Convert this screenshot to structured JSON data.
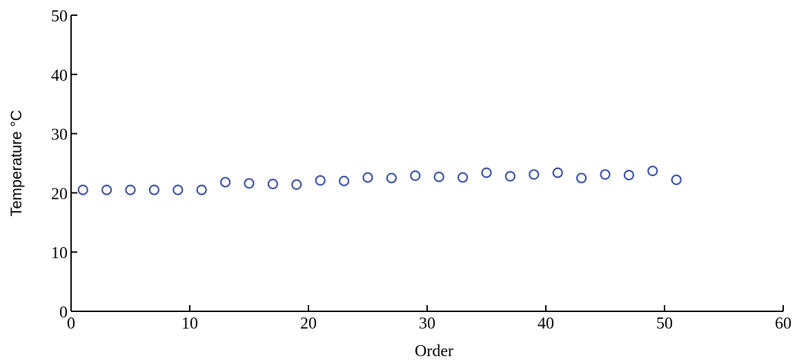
{
  "chart_data": {
    "type": "scatter",
    "title": "",
    "xlabel": "Order",
    "ylabel": "Temperature °C",
    "xlim": [
      0,
      60
    ],
    "ylim": [
      0,
      50
    ],
    "x_ticks": [
      0,
      10,
      20,
      30,
      40,
      50,
      60
    ],
    "y_ticks": [
      0,
      10,
      20,
      30,
      40,
      50
    ],
    "grid": false,
    "marker": "open-circle",
    "colors": {
      "marker": "#3a4fa8",
      "axis": "#000000"
    },
    "series": [
      {
        "x": [
          1,
          3,
          5,
          7,
          9,
          11,
          13,
          15,
          17,
          19,
          21,
          23,
          25,
          27,
          29,
          31,
          33,
          35,
          37,
          39,
          41,
          43,
          45,
          47,
          49,
          51
        ],
        "y": [
          20.5,
          20.5,
          20.5,
          20.5,
          20.5,
          20.5,
          21.8,
          21.6,
          21.5,
          21.4,
          22.1,
          22.0,
          22.6,
          22.5,
          22.9,
          22.7,
          22.6,
          23.4,
          22.8,
          23.1,
          23.4,
          22.5,
          23.1,
          23.0,
          23.7,
          22.2
        ]
      }
    ]
  }
}
